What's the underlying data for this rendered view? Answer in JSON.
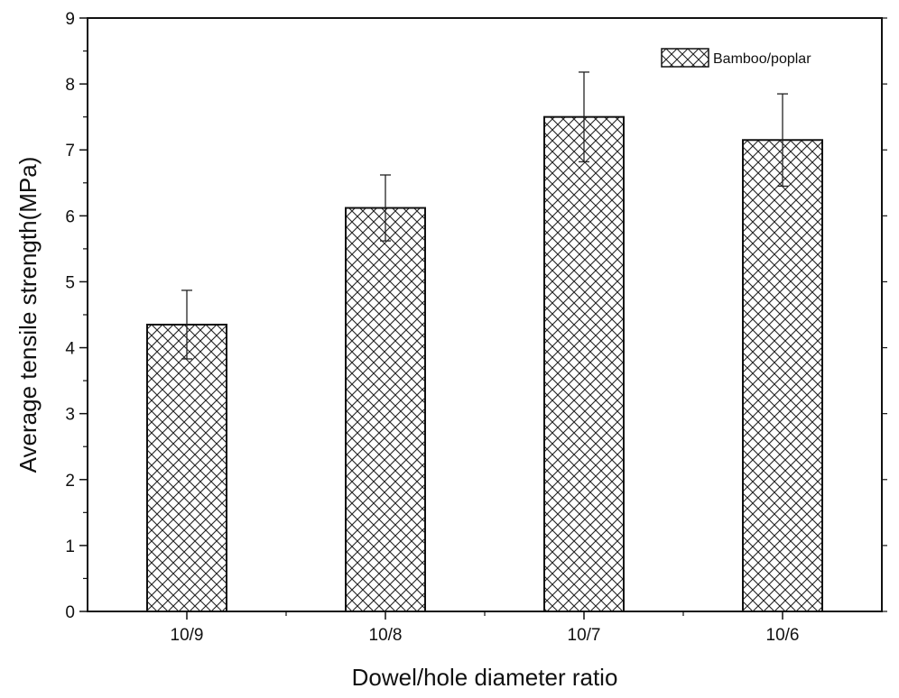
{
  "chart_data": {
    "type": "bar",
    "title": "",
    "xlabel": "Dowel/hole diameter ratio",
    "ylabel": "Average tensile strength(MPa)",
    "categories": [
      "10/9",
      "10/8",
      "10/7",
      "10/6"
    ],
    "series": [
      {
        "name": "Bamboo/poplar",
        "values": [
          4.35,
          6.12,
          7.5,
          7.15
        ],
        "errors": [
          0.52,
          0.5,
          0.68,
          0.7
        ]
      }
    ],
    "ylim": [
      0,
      9
    ],
    "yticks": [
      "0",
      "1",
      "2",
      "3",
      "4",
      "5",
      "6",
      "7",
      "8",
      "9"
    ],
    "grid": false,
    "legend": "top-right",
    "bar_fill": "crosshatch"
  }
}
